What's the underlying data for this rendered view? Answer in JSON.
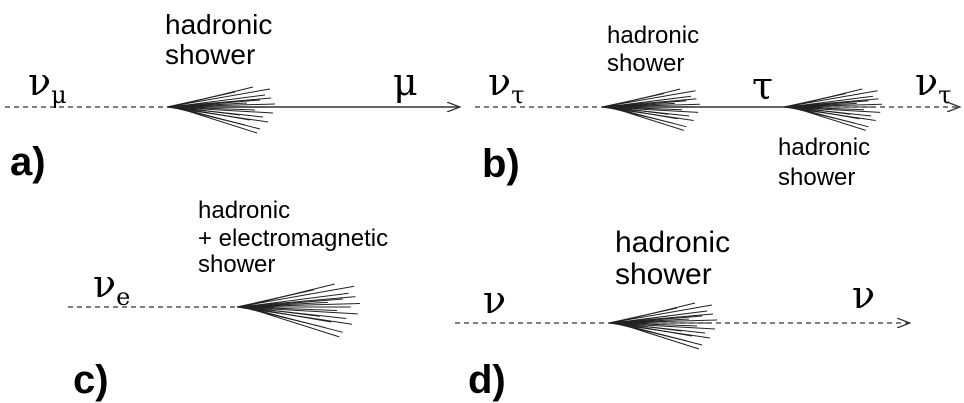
{
  "panels": [
    {
      "label": "a)",
      "incoming": {
        "symbol": "ν",
        "subscript": "μ"
      },
      "shower": [
        "hadronic",
        "shower"
      ],
      "outgoing": {
        "symbol": "μ"
      }
    },
    {
      "label": "b)",
      "incoming": {
        "symbol": "ν",
        "subscript": "τ"
      },
      "shower": [
        "hadronic",
        "shower"
      ],
      "intermediate": {
        "symbol": "τ"
      },
      "shower2": [
        "hadronic",
        "shower"
      ],
      "outgoing": {
        "symbol": "ν",
        "subscript": "τ"
      }
    },
    {
      "label": "c)",
      "incoming": {
        "symbol": "ν",
        "subscript": "e"
      },
      "shower": [
        "hadronic",
        "+ electromagnetic",
        "shower"
      ]
    },
    {
      "label": "d)",
      "incoming": {
        "symbol": "ν"
      },
      "shower": [
        "hadronic",
        "shower"
      ],
      "outgoing": {
        "symbol": "ν"
      }
    }
  ]
}
